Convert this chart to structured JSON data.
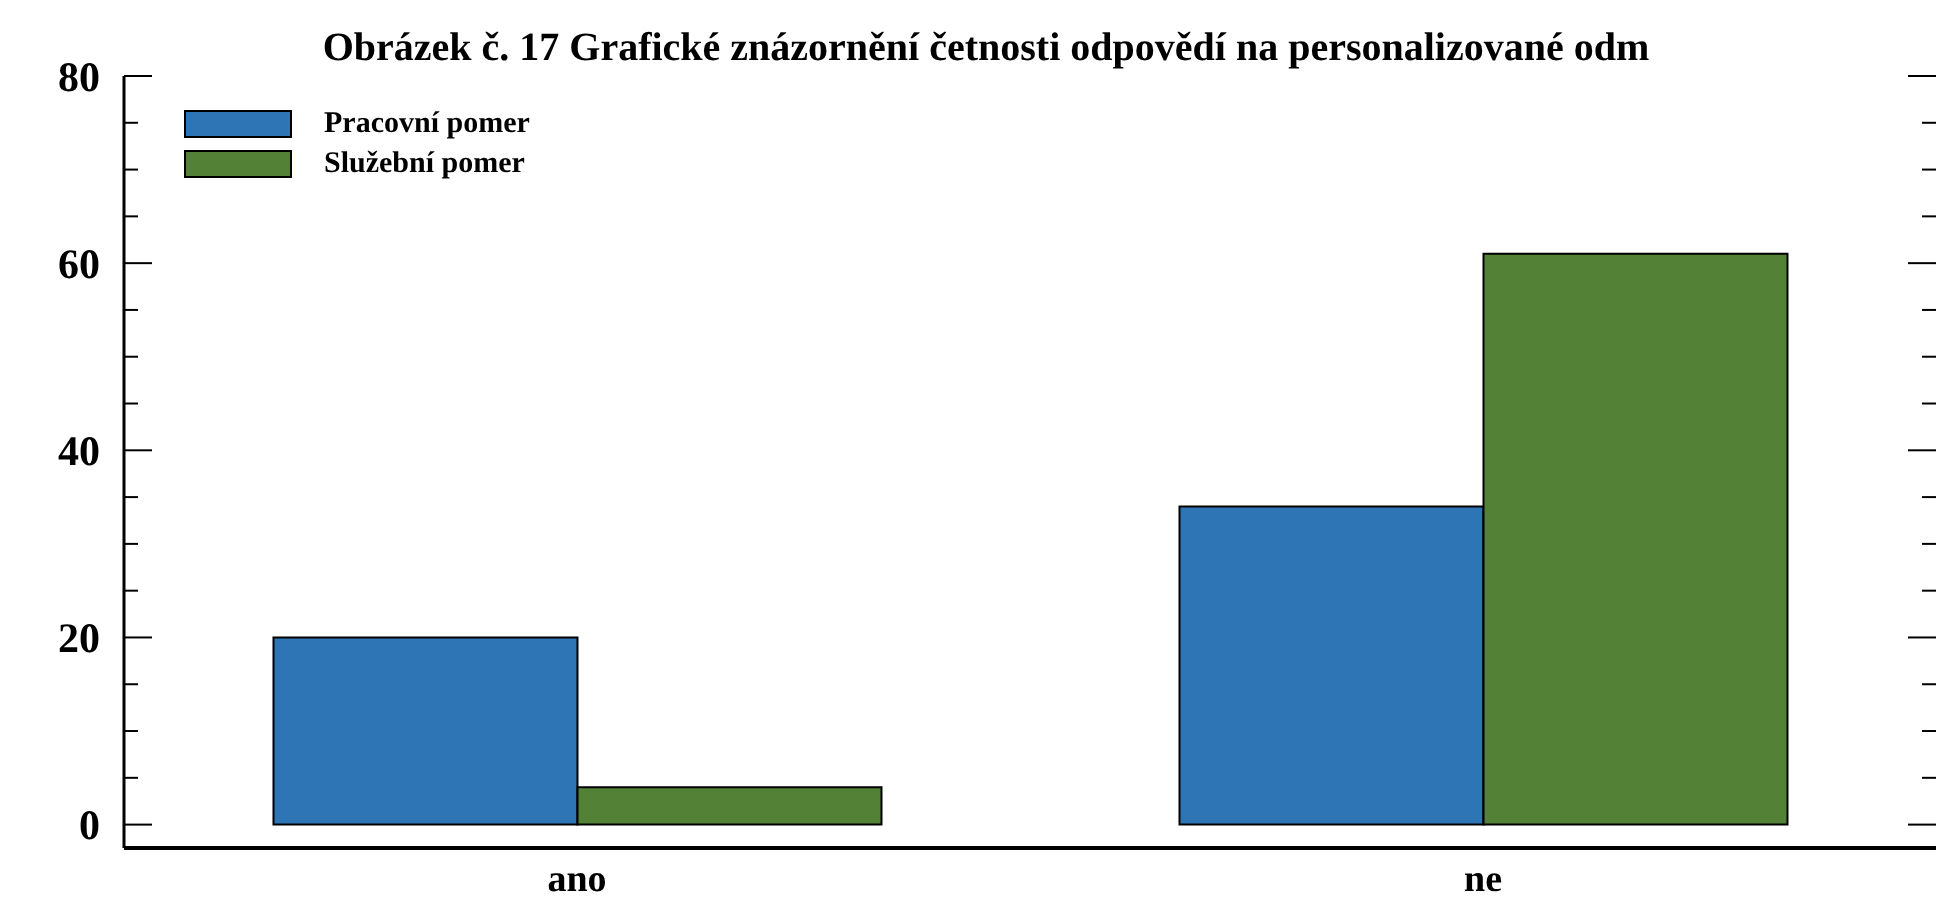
{
  "chart_data": {
    "type": "bar",
    "title": "Obrázek č. 17 Grafické znázornění četnosti odpovědí na personalizované odm",
    "categories": [
      "ano",
      "ne"
    ],
    "series": [
      {
        "name": "Pracovní pomer",
        "color": "#2e75b6",
        "values": [
          20,
          34
        ]
      },
      {
        "name": "Služební pomer",
        "color": "#538135",
        "values": [
          4,
          61
        ]
      }
    ],
    "ylim": [
      -2.5,
      80
    ],
    "yticks": [
      0,
      {
        "value": 5,
        "label": null
      },
      {
        "value": 10,
        "label": null
      },
      {
        "value": 15,
        "label": null
      },
      20,
      {
        "value": 25,
        "label": null
      },
      {
        "value": 30,
        "label": null
      },
      {
        "value": 35,
        "label": null
      },
      40,
      {
        "value": 45,
        "label": null
      },
      {
        "value": 50,
        "label": null
      },
      {
        "value": 55,
        "label": null
      },
      60,
      {
        "value": 65,
        "label": null
      },
      {
        "value": 70,
        "label": null
      },
      {
        "value": 75,
        "label": null
      },
      80
    ],
    "grid": false,
    "legend": "top left"
  }
}
